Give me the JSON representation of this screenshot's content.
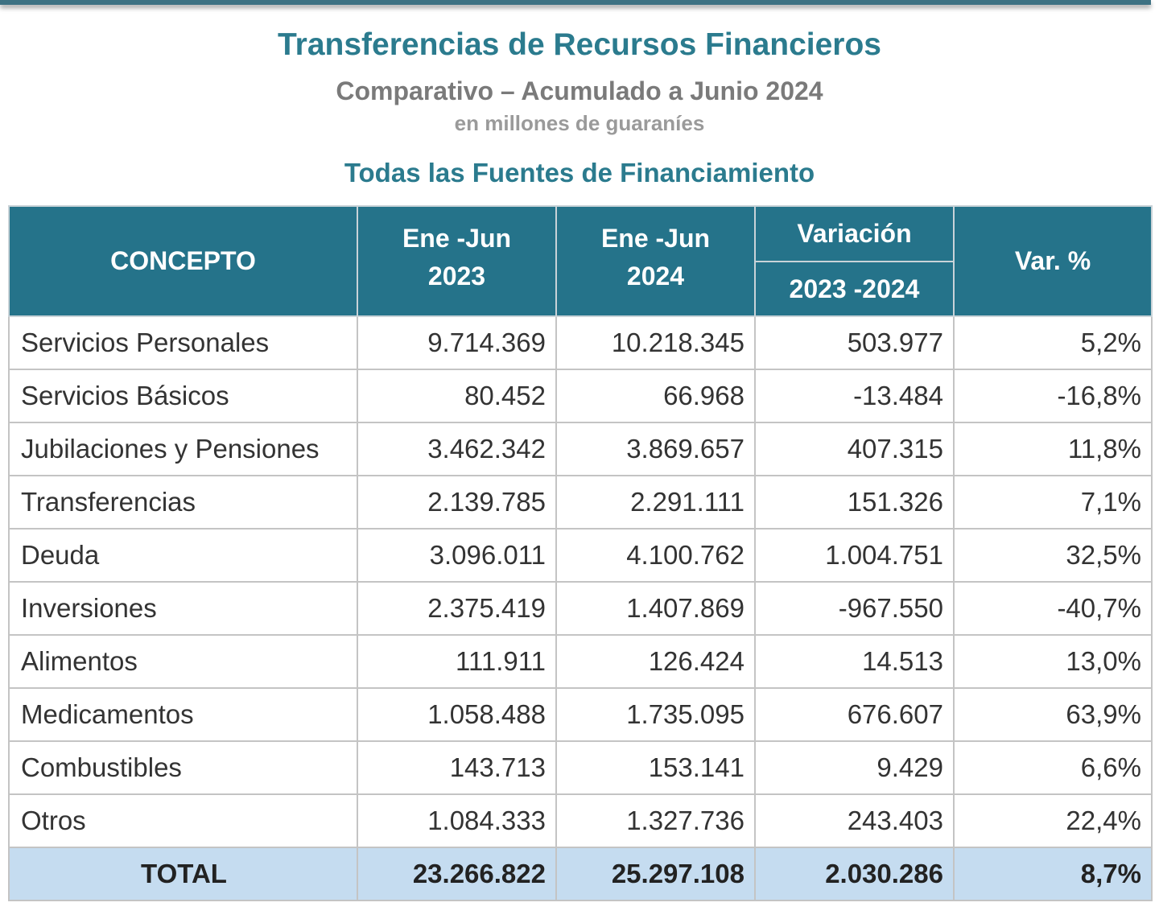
{
  "title": "Transferencias de Recursos Financieros",
  "subtitle": "Comparativo – Acumulado a Junio 2024",
  "units": "en millones de guaraníes",
  "section": "Todas las Fuentes de Financiamiento",
  "colors": {
    "header": "#25738a",
    "title": "#2b7b8e",
    "total_row": "#c5dcf0"
  },
  "headers": {
    "concepto": "CONCEPTO",
    "col1_a": "Ene -Jun",
    "col1_b": "2023",
    "col2_a": "Ene -Jun",
    "col2_b": "2024",
    "var_a": "Variación",
    "var_b": "2023 -2024",
    "varpct": "Var. %"
  },
  "rows": [
    {
      "concepto": "Servicios Personales",
      "y2023": "9.714.369",
      "y2024": "10.218.345",
      "var": "503.977",
      "pct": "5,2%"
    },
    {
      "concepto": "Servicios Básicos",
      "y2023": "80.452",
      "y2024": "66.968",
      "var": "-13.484",
      "pct": "-16,8%"
    },
    {
      "concepto": "Jubilaciones y Pensiones",
      "y2023": "3.462.342",
      "y2024": "3.869.657",
      "var": "407.315",
      "pct": "11,8%"
    },
    {
      "concepto": "Transferencias",
      "y2023": "2.139.785",
      "y2024": "2.291.111",
      "var": "151.326",
      "pct": "7,1%"
    },
    {
      "concepto": "Deuda",
      "y2023": "3.096.011",
      "y2024": "4.100.762",
      "var": "1.004.751",
      "pct": "32,5%"
    },
    {
      "concepto": "Inversiones",
      "y2023": "2.375.419",
      "y2024": "1.407.869",
      "var": "-967.550",
      "pct": "-40,7%"
    },
    {
      "concepto": "Alimentos",
      "y2023": "111.911",
      "y2024": "126.424",
      "var": "14.513",
      "pct": "13,0%"
    },
    {
      "concepto": "Medicamentos",
      "y2023": "1.058.488",
      "y2024": "1.735.095",
      "var": "676.607",
      "pct": "63,9%"
    },
    {
      "concepto": "Combustibles",
      "y2023": "143.713",
      "y2024": "153.141",
      "var": "9.429",
      "pct": "6,6%"
    },
    {
      "concepto": "Otros",
      "y2023": "1.084.333",
      "y2024": "1.327.736",
      "var": "243.403",
      "pct": "22,4%"
    }
  ],
  "total": {
    "concepto": "TOTAL",
    "y2023": "23.266.822",
    "y2024": "25.297.108",
    "var": "2.030.286",
    "pct": "8,7%"
  }
}
